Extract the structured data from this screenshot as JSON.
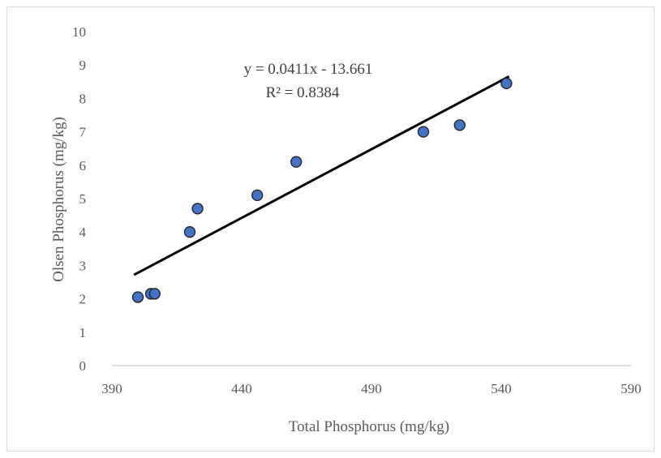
{
  "chart_data": {
    "type": "scatter",
    "xlabel": "Total Phosphorus (mg/kg)",
    "ylabel": "Olsen Phosphorus (mg/kg)",
    "xlim": [
      390,
      590
    ],
    "ylim": [
      0,
      10
    ],
    "xticks": [
      "390",
      "440",
      "490",
      "540",
      "590"
    ],
    "yticks": [
      "0",
      "1",
      "2",
      "3",
      "4",
      "5",
      "6",
      "7",
      "8",
      "9",
      "10"
    ],
    "grid": false,
    "legend": "none",
    "points": [
      {
        "x": 400,
        "y": 2.05
      },
      {
        "x": 405,
        "y": 2.15
      },
      {
        "x": 406.5,
        "y": 2.15
      },
      {
        "x": 420,
        "y": 4.0
      },
      {
        "x": 423,
        "y": 4.7
      },
      {
        "x": 446,
        "y": 5.1
      },
      {
        "x": 461,
        "y": 6.1
      },
      {
        "x": 510,
        "y": 7.0
      },
      {
        "x": 524,
        "y": 7.2
      },
      {
        "x": 542,
        "y": 8.45
      }
    ],
    "trendline": {
      "slope": 0.0411,
      "intercept": -13.661,
      "x_range": [
        398.5,
        543
      ],
      "equation_label": "y = 0.0411x - 13.661",
      "r2_label": "R² = 0.8384"
    },
    "colors": {
      "marker_fill": "#4472c4",
      "marker_stroke": "#1f1f1f",
      "trendline": "#000000",
      "axis": "#bfbfbf",
      "text": "#595959"
    }
  }
}
